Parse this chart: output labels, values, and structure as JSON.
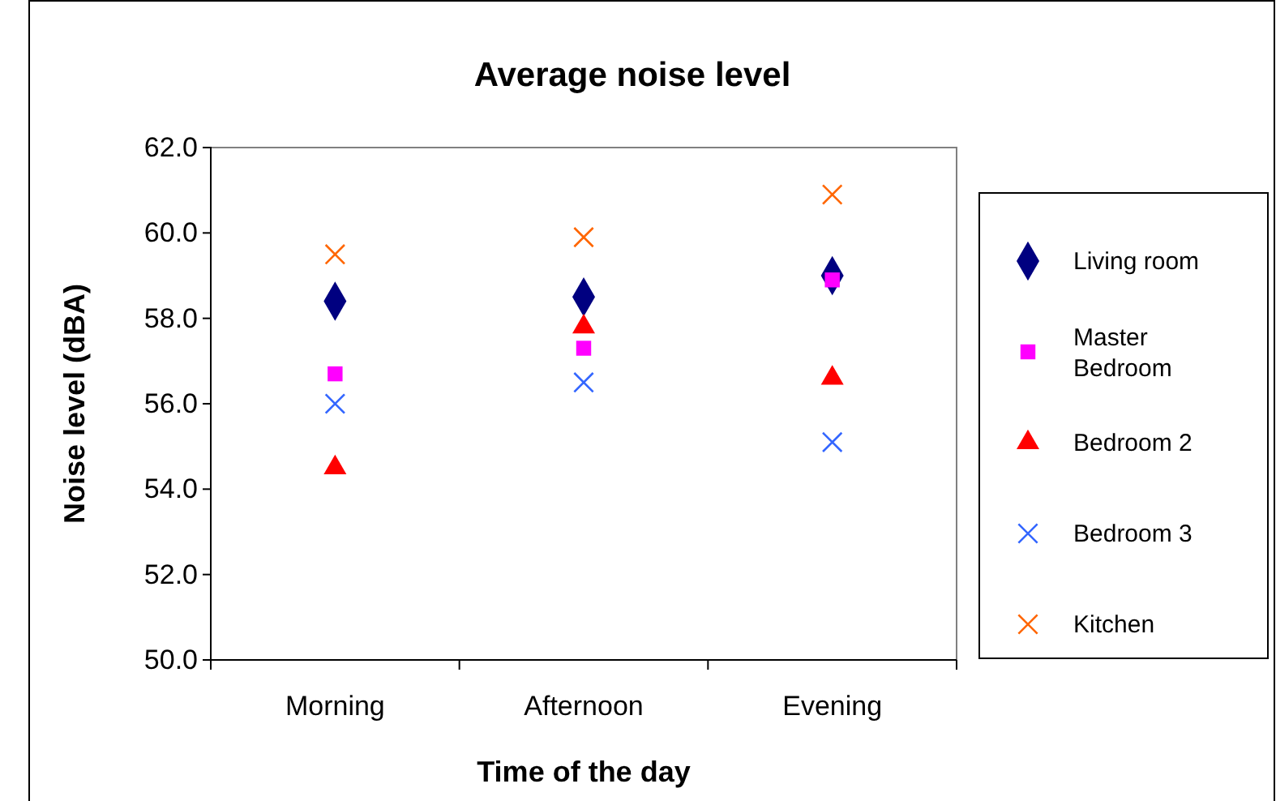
{
  "chart_data": {
    "type": "scatter",
    "title": "Average noise level",
    "xlabel": "Time of the day",
    "ylabel": "Noise level (dBA)",
    "categories": [
      "Morning",
      "Afternoon",
      "Evening"
    ],
    "series": [
      {
        "name": "Living room",
        "color": "#000080",
        "marker": "diamond",
        "values": [
          58.4,
          58.5,
          59.0
        ]
      },
      {
        "name": "Master Bedroom",
        "color": "#ff00ff",
        "marker": "square",
        "values": [
          56.7,
          57.3,
          58.9
        ]
      },
      {
        "name": "Bedroom 2",
        "color": "#ff0000",
        "marker": "triangle",
        "values": [
          54.5,
          57.8,
          56.6
        ]
      },
      {
        "name": "Bedroom 3",
        "color": "#3366ff",
        "marker": "cross",
        "values": [
          56.0,
          56.5,
          55.1
        ]
      },
      {
        "name": "Kitchen",
        "color": "#ff6600",
        "marker": "cross",
        "values": [
          59.5,
          59.9,
          60.9
        ]
      }
    ],
    "ylim": [
      50,
      62
    ],
    "yticks": [
      {
        "value": 50,
        "label": "50.0"
      },
      {
        "value": 52,
        "label": "52.0"
      },
      {
        "value": 54,
        "label": "54.0"
      },
      {
        "value": 56,
        "label": "56.0"
      },
      {
        "value": 58,
        "label": "58.0"
      },
      {
        "value": 60,
        "label": "60.0"
      },
      {
        "value": 62,
        "label": "62.0"
      }
    ],
    "grid": false,
    "legend": "right"
  }
}
